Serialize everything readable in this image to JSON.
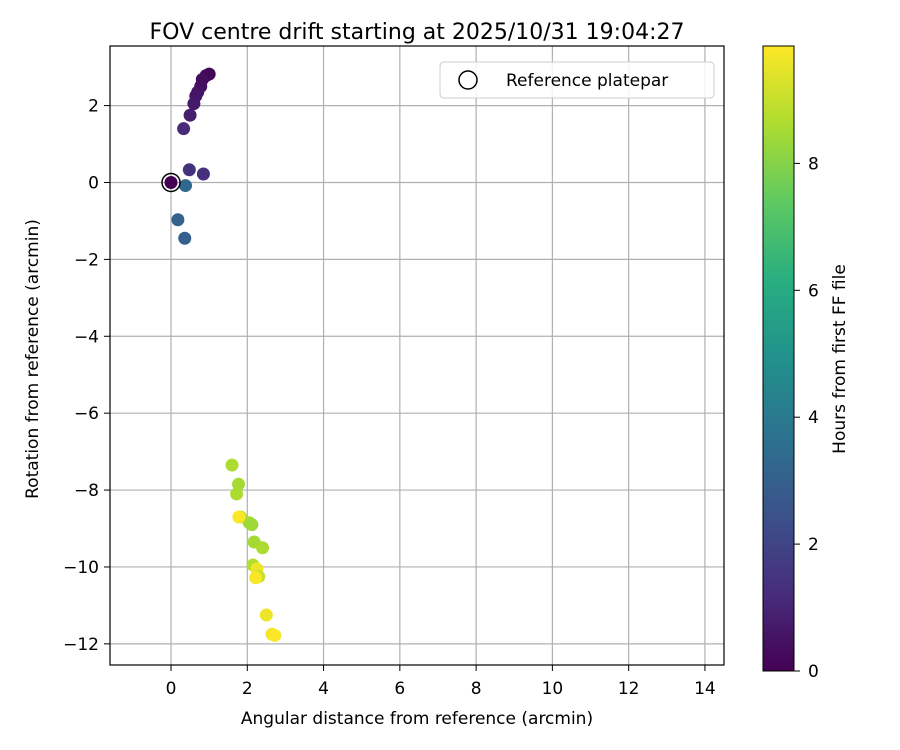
{
  "chart_data": {
    "type": "scatter",
    "title": "FOV centre drift starting at 2025/10/31 19:04:27",
    "xlabel": "Angular distance from reference (arcmin)",
    "ylabel": "Rotation from reference (arcmin)",
    "xlim": [
      -1.6,
      14.5
    ],
    "ylim": [
      -12.55,
      3.55
    ],
    "xticks": [
      0,
      2,
      4,
      6,
      8,
      10,
      12,
      14
    ],
    "yticks": [
      -12,
      -10,
      -8,
      -6,
      -4,
      -2,
      0,
      2
    ],
    "grid": true,
    "legend": {
      "position": "top-right",
      "entries": [
        "Reference platepar"
      ]
    },
    "reference_point": {
      "label": "Reference platepar",
      "x": 0,
      "y": 0
    },
    "colorbar": {
      "label": "Hours from first FF file",
      "range": [
        0,
        9.85
      ],
      "ticks": [
        0,
        2,
        4,
        6,
        8
      ],
      "colormap": "viridis"
    },
    "series": [
      {
        "points": [
          {
            "x": 0.0,
            "y": 0.0,
            "c": 0.0
          },
          {
            "x": 1.0,
            "y": 2.82,
            "c": 0.1
          },
          {
            "x": 0.92,
            "y": 2.78,
            "c": 0.2
          },
          {
            "x": 0.82,
            "y": 2.68,
            "c": 0.3
          },
          {
            "x": 0.78,
            "y": 2.5,
            "c": 0.4
          },
          {
            "x": 0.7,
            "y": 2.35,
            "c": 0.5
          },
          {
            "x": 0.65,
            "y": 2.25,
            "c": 0.6
          },
          {
            "x": 0.6,
            "y": 2.05,
            "c": 0.7
          },
          {
            "x": 0.5,
            "y": 1.75,
            "c": 0.8
          },
          {
            "x": 0.33,
            "y": 1.4,
            "c": 1.2
          },
          {
            "x": 0.48,
            "y": 0.33,
            "c": 1.4
          },
          {
            "x": 0.85,
            "y": 0.22,
            "c": 1.3
          },
          {
            "x": 0.38,
            "y": -0.08,
            "c": 3.3
          },
          {
            "x": 0.18,
            "y": -0.97,
            "c": 3.1
          },
          {
            "x": 0.36,
            "y": -1.45,
            "c": 3.0
          },
          {
            "x": 1.6,
            "y": -7.35,
            "c": 8.6
          },
          {
            "x": 1.77,
            "y": -7.85,
            "c": 8.5
          },
          {
            "x": 1.72,
            "y": -8.1,
            "c": 8.6
          },
          {
            "x": 1.82,
            "y": -8.7,
            "c": 8.8
          },
          {
            "x": 2.05,
            "y": -8.85,
            "c": 8.5
          },
          {
            "x": 2.12,
            "y": -8.9,
            "c": 8.4
          },
          {
            "x": 2.18,
            "y": -9.35,
            "c": 8.5
          },
          {
            "x": 2.4,
            "y": -9.5,
            "c": 8.6
          },
          {
            "x": 2.15,
            "y": -9.95,
            "c": 8.7
          },
          {
            "x": 2.25,
            "y": -10.05,
            "c": 9.6
          },
          {
            "x": 2.3,
            "y": -10.25,
            "c": 9.0
          },
          {
            "x": 2.22,
            "y": -10.28,
            "c": 9.8
          },
          {
            "x": 2.5,
            "y": -11.25,
            "c": 9.6
          },
          {
            "x": 2.65,
            "y": -11.75,
            "c": 9.7
          },
          {
            "x": 2.72,
            "y": -11.78,
            "c": 9.8
          },
          {
            "x": 1.78,
            "y": -8.7,
            "c": 9.8
          }
        ]
      }
    ]
  }
}
